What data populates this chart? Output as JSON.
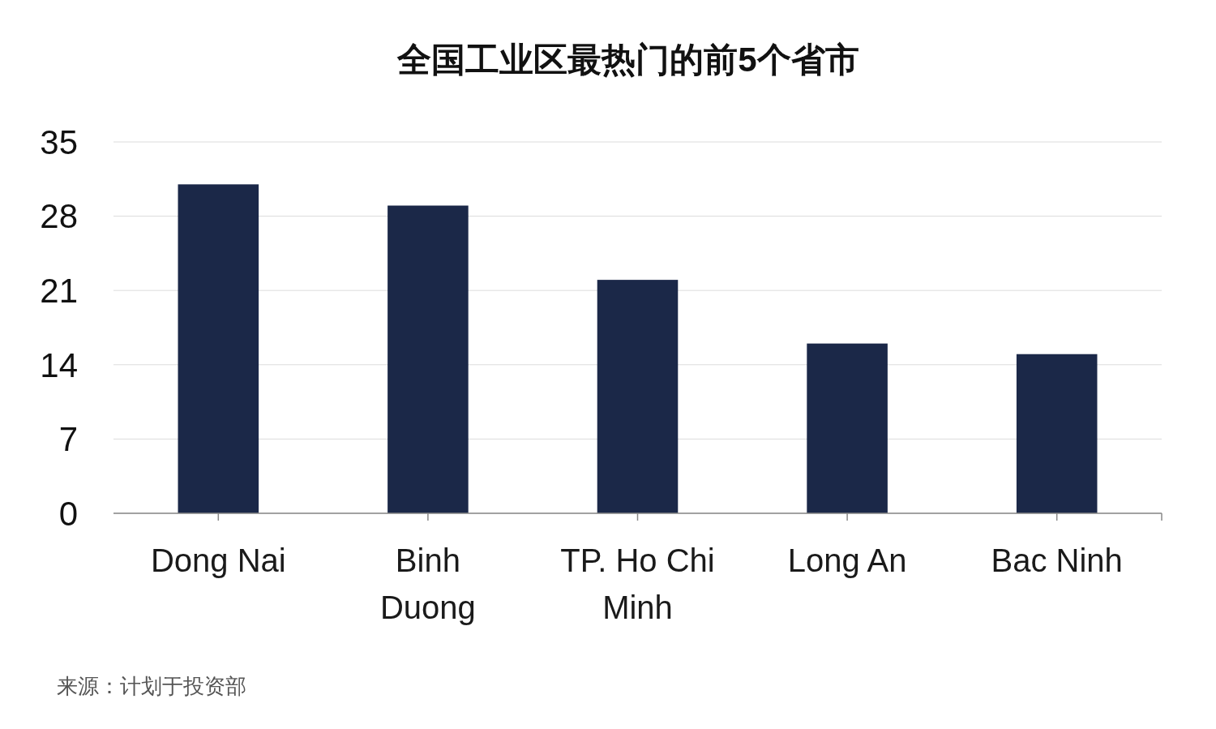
{
  "chart_data": {
    "type": "bar",
    "title": "全国工业区最热门的前5个省市",
    "categories": [
      "Dong Nai",
      "Binh Duong",
      "TP. Ho Chi Minh",
      "Long An",
      "Bac Ninh"
    ],
    "values": [
      31,
      29,
      22,
      16,
      15
    ],
    "color": "#1b2848",
    "ylim": [
      0,
      35
    ],
    "yticks": [
      0,
      7,
      14,
      21,
      28,
      35
    ],
    "grid": "y",
    "annotations": [
      "来源：计划于投资部"
    ]
  }
}
